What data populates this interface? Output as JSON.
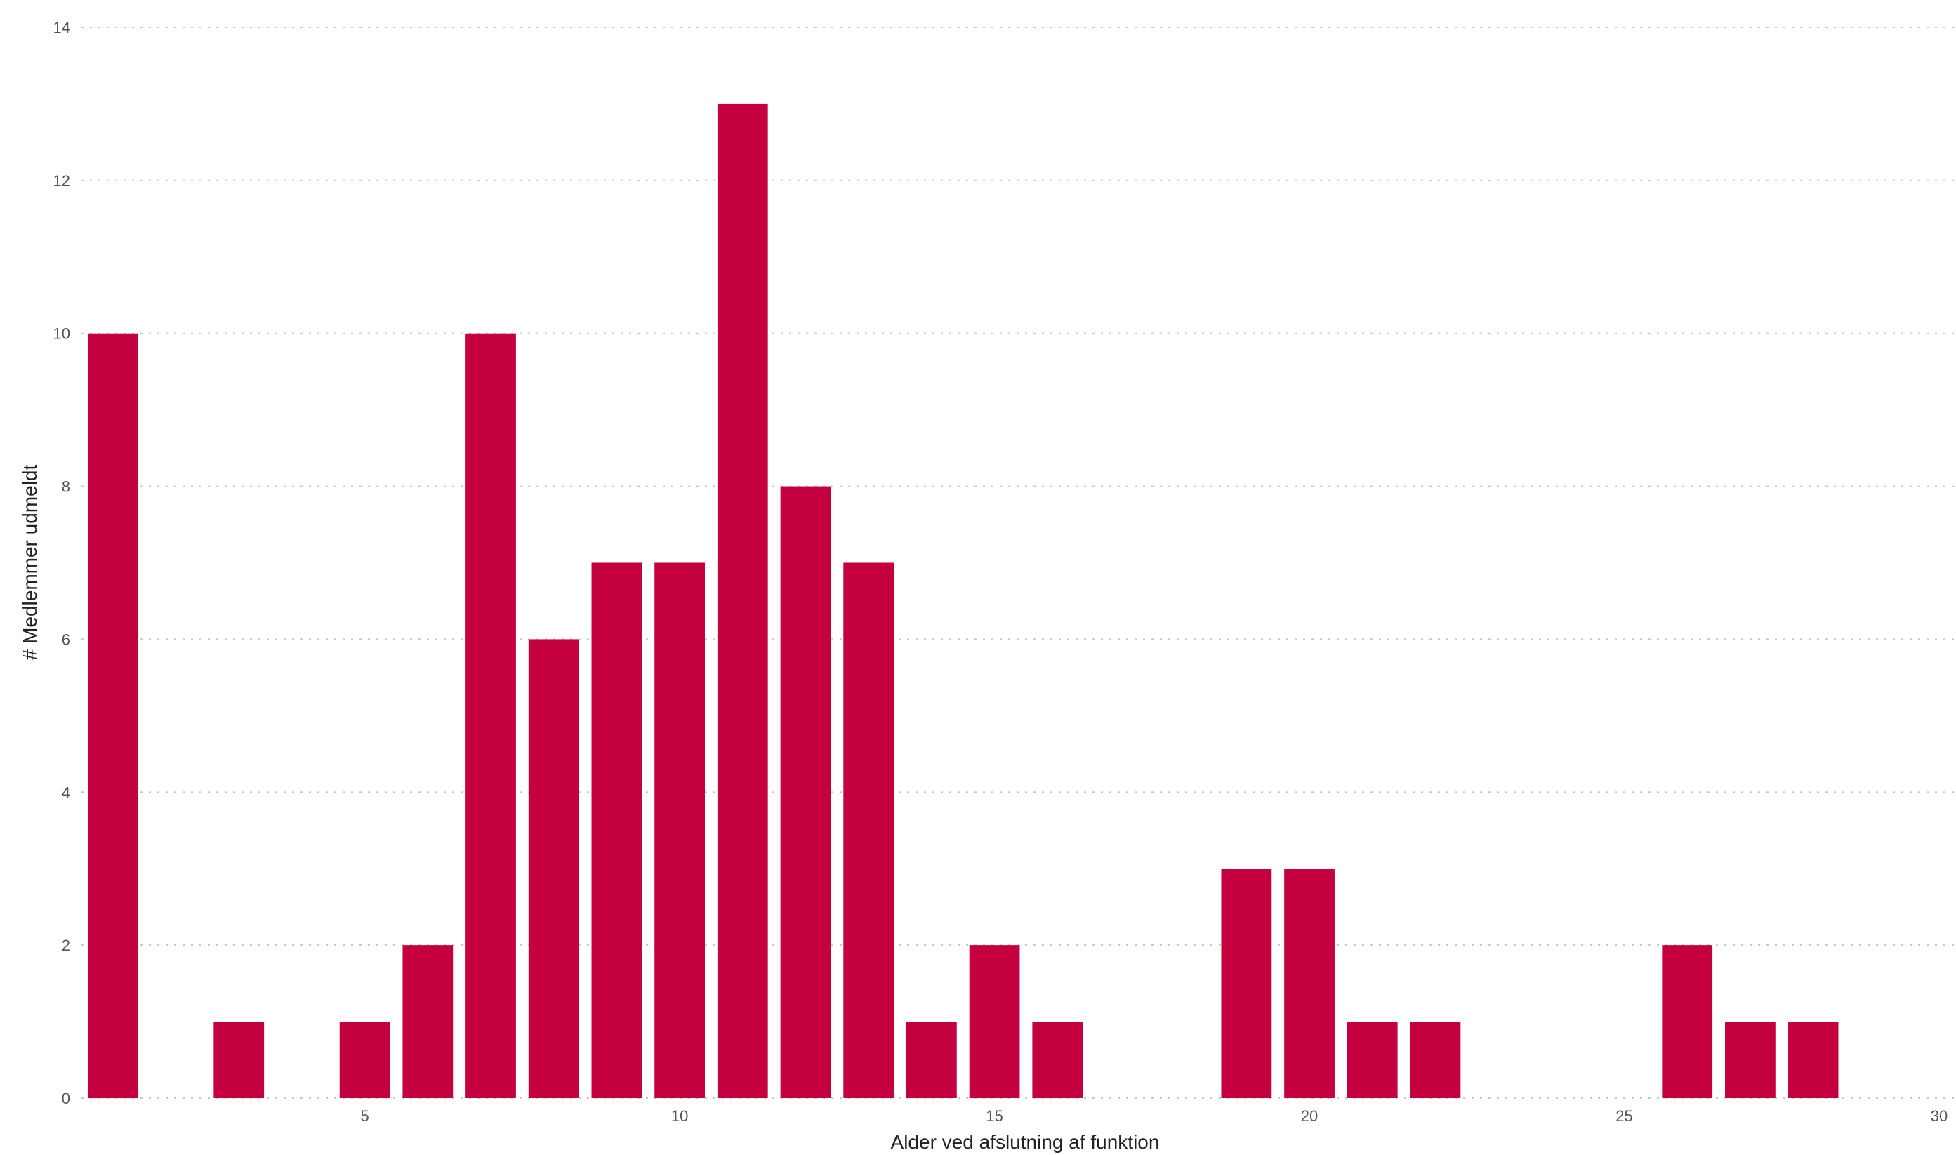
{
  "chart_data": {
    "type": "bar",
    "title": "",
    "xlabel": "Alder ved afslutning af funktion",
    "ylabel": "# Medlemmer udmeldt",
    "x": [
      1,
      2,
      3,
      4,
      5,
      6,
      7,
      8,
      9,
      10,
      11,
      12,
      13,
      14,
      15,
      16,
      17,
      18,
      19,
      20,
      21,
      22,
      23,
      24,
      25,
      26,
      27,
      28,
      29
    ],
    "values": [
      10,
      0,
      1,
      0,
      1,
      2,
      10,
      6,
      7,
      7,
      13,
      8,
      7,
      1,
      2,
      1,
      0,
      0,
      3,
      3,
      1,
      1,
      0,
      0,
      0,
      2,
      1,
      1,
      0
    ],
    "xlim": [
      0.5,
      30
    ],
    "ylim": [
      0,
      14
    ],
    "x_ticks": [
      5,
      10,
      15,
      20,
      25,
      30
    ],
    "y_ticks": [
      0,
      2,
      4,
      6,
      8,
      10,
      12,
      14
    ],
    "bar_color": "#c4003e",
    "grid": true,
    "grid_style": "dotted",
    "legend": false
  }
}
